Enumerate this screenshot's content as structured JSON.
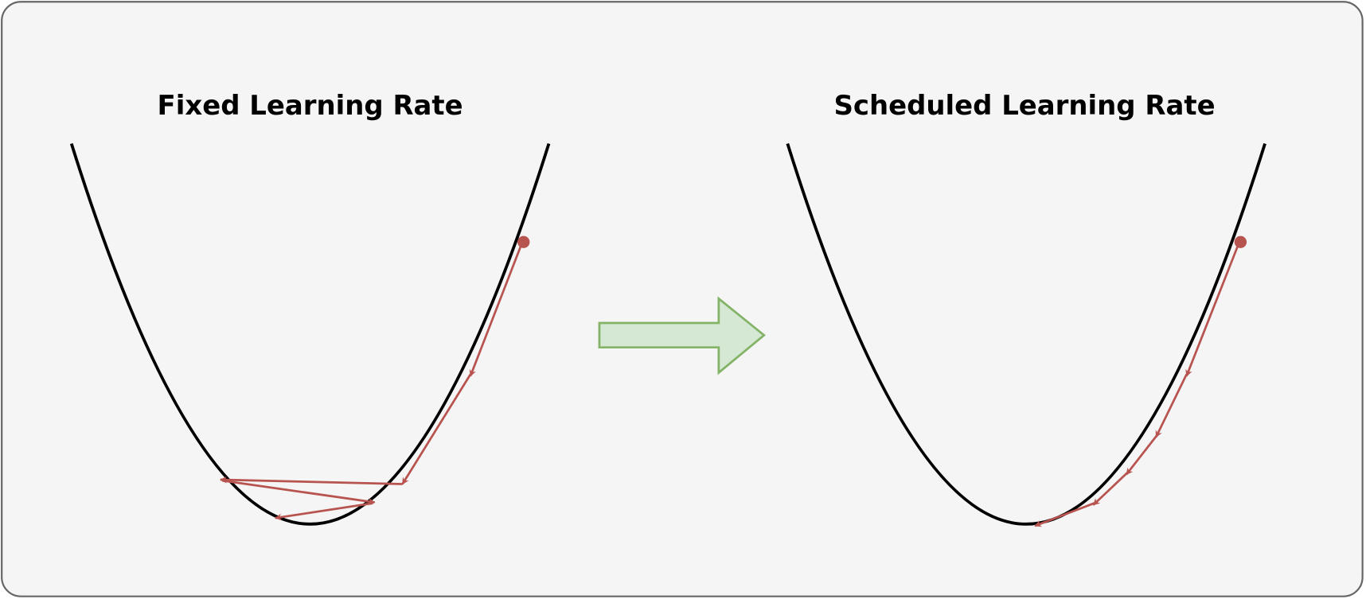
{
  "panels": [
    {
      "title": "Fixed Learning Rate"
    },
    {
      "title": "Scheduled Learning Rate"
    }
  ]
}
